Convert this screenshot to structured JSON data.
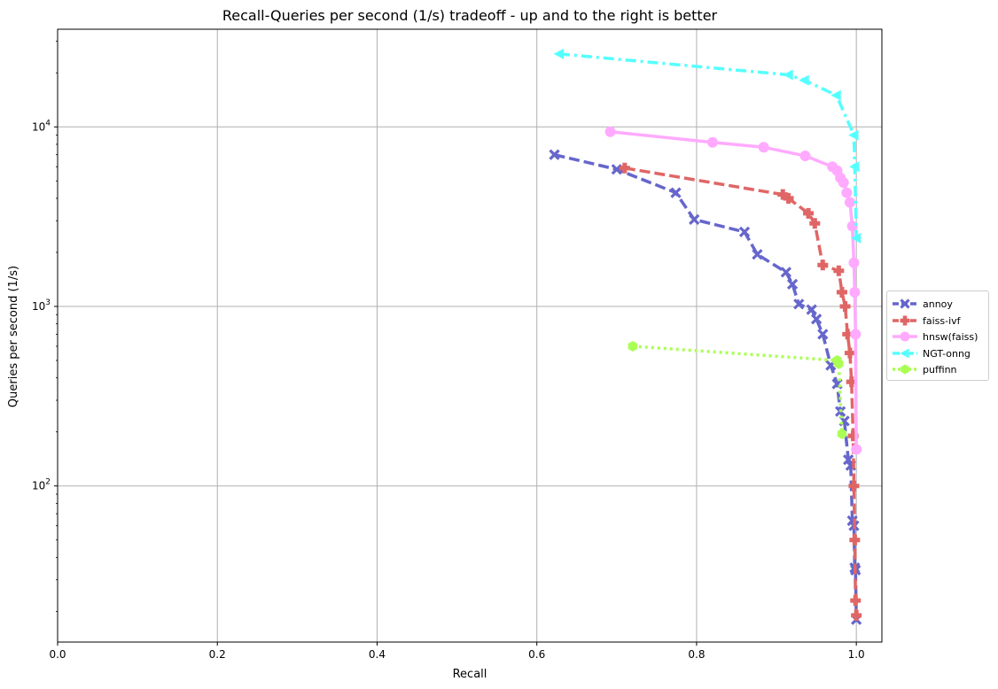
{
  "chart_data": {
    "type": "line",
    "title": "Recall-Queries per second (1/s) tradeoff - up and to the right is better",
    "xlabel": "Recall",
    "ylabel": "Queries per second (1/s)",
    "x_scale": "linear",
    "y_scale": "log",
    "xlim": [
      0.0,
      1.032
    ],
    "ylim": [
      13.5,
      35000
    ],
    "x_ticks": [
      "0.0",
      "0.2",
      "0.4",
      "0.6",
      "0.8",
      "1.0"
    ],
    "y_ticks": [
      "10^2",
      "10^3",
      "10^4"
    ],
    "grid": true,
    "legend_position": "right, outside plot",
    "series": [
      {
        "name": "annoy",
        "color": "#6666cc",
        "line_style": "dashed",
        "marker": "x",
        "x": [
          0.622,
          0.7,
          0.774,
          0.797,
          0.86,
          0.876,
          0.912,
          0.92,
          0.928,
          0.944,
          0.95,
          0.958,
          0.968,
          0.976,
          0.98,
          0.985,
          0.99,
          0.993,
          0.995,
          0.997,
          0.998,
          0.999,
          1.0
        ],
        "y": [
          7000,
          5800,
          4300,
          3050,
          2600,
          1950,
          1550,
          1330,
          1030,
          960,
          850,
          700,
          470,
          370,
          260,
          230,
          140,
          130,
          64,
          60,
          35,
          34,
          18
        ]
      },
      {
        "name": "faiss-ivf",
        "color": "#e06666",
        "line_style": "dashed",
        "marker": "P",
        "x": [
          0.71,
          0.908,
          0.915,
          0.94,
          0.948,
          0.958,
          0.978,
          0.982,
          0.986,
          0.989,
          0.992,
          0.994,
          0.996,
          0.997,
          0.998,
          0.999,
          1.0
        ],
        "y": [
          5900,
          4200,
          4000,
          3300,
          2900,
          1700,
          1580,
          1200,
          1000,
          700,
          550,
          380,
          190,
          100,
          50,
          23,
          19
        ]
      },
      {
        "name": "hnsw(faiss)",
        "color": "#ffaaff",
        "line_style": "solid",
        "marker": "o",
        "x": [
          0.692,
          0.82,
          0.884,
          0.936,
          0.97,
          0.976,
          0.98,
          0.984,
          0.988,
          0.992,
          0.995,
          0.997,
          0.998,
          0.999,
          1.0
        ],
        "y": [
          9400,
          8200,
          7700,
          6900,
          6000,
          5700,
          5200,
          4900,
          4300,
          3800,
          2800,
          1750,
          1200,
          700,
          160
        ]
      },
      {
        "name": "NGT-onng",
        "color": "#55ffff",
        "line_style": "dashdot",
        "marker": "<",
        "x": [
          0.628,
          0.915,
          0.935,
          0.975,
          0.997,
          0.998,
          1.0
        ],
        "y": [
          25500,
          19500,
          18200,
          15000,
          9000,
          6000,
          2400
        ]
      },
      {
        "name": "puffinn",
        "color": "#aaff55",
        "line_style": "dotted",
        "marker": "h",
        "x": [
          0.72,
          0.976,
          0.978,
          0.982
        ],
        "y": [
          600,
          500,
          480,
          195
        ]
      }
    ]
  }
}
